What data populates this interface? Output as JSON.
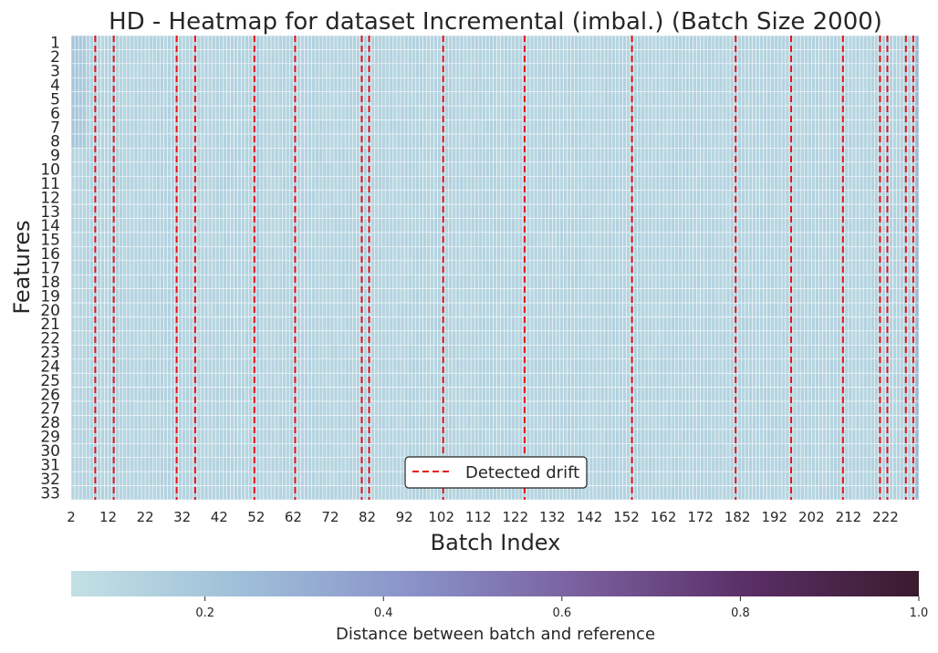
{
  "chart_data": {
    "type": "heatmap",
    "title": "HD - Heatmap for dataset Incremental (imbal.) (Batch Size 2000)",
    "xlabel": "Batch Index",
    "ylabel": "Features",
    "x_start": 2,
    "x_end": 230,
    "x_tick_labels": [
      "2",
      "12",
      "22",
      "32",
      "42",
      "52",
      "62",
      "72",
      "82",
      "92",
      "102",
      "112",
      "122",
      "132",
      "142",
      "152",
      "162",
      "172",
      "182",
      "192",
      "202",
      "212",
      "222"
    ],
    "y_tick_labels": [
      "1",
      "2",
      "3",
      "4",
      "5",
      "6",
      "7",
      "8",
      "9",
      "10",
      "11",
      "12",
      "13",
      "14",
      "15",
      "16",
      "17",
      "18",
      "19",
      "20",
      "21",
      "22",
      "23",
      "24",
      "25",
      "26",
      "27",
      "28",
      "29",
      "30",
      "31",
      "32",
      "33"
    ],
    "value_range": [
      0.05,
      1.0
    ],
    "typical_value": 0.12,
    "elevated_cells": [
      {
        "batch": 230,
        "feature_range": [
          1,
          33
        ],
        "value": 0.27
      },
      {
        "batch": 52,
        "feature_range": [
          1,
          23
        ],
        "value": 0.17
      },
      {
        "batch": 2,
        "feature_range": [
          1,
          8
        ],
        "value": 0.2
      },
      {
        "batch": 3,
        "feature_range": [
          1,
          8
        ],
        "value": 0.2
      },
      {
        "batch": 4,
        "feature_range": [
          1,
          8
        ],
        "value": 0.19
      },
      {
        "batch": 5,
        "feature_range": [
          1,
          8
        ],
        "value": 0.18
      }
    ],
    "drift_batches": [
      8,
      13,
      30,
      35,
      51,
      62,
      80,
      82,
      102,
      124,
      153,
      181,
      196,
      210,
      220,
      222,
      227,
      229
    ],
    "legend": {
      "label": "Detected drift",
      "position": "bottom-center"
    },
    "colorbar": {
      "label": "Distance between batch and reference",
      "ticks": [
        "0.2",
        "0.4",
        "0.6",
        "0.8",
        "1.0"
      ],
      "tick_values": [
        0.2,
        0.4,
        0.6,
        0.8,
        1.0
      ],
      "stops": [
        "#c2e0e4",
        "#9fbfd9",
        "#8a93c9",
        "#7a5f9e",
        "#5a2e66",
        "#3a1b2e"
      ]
    },
    "colors": {
      "drift_line": "#e8141b",
      "grid_line": "#ffffff"
    }
  }
}
